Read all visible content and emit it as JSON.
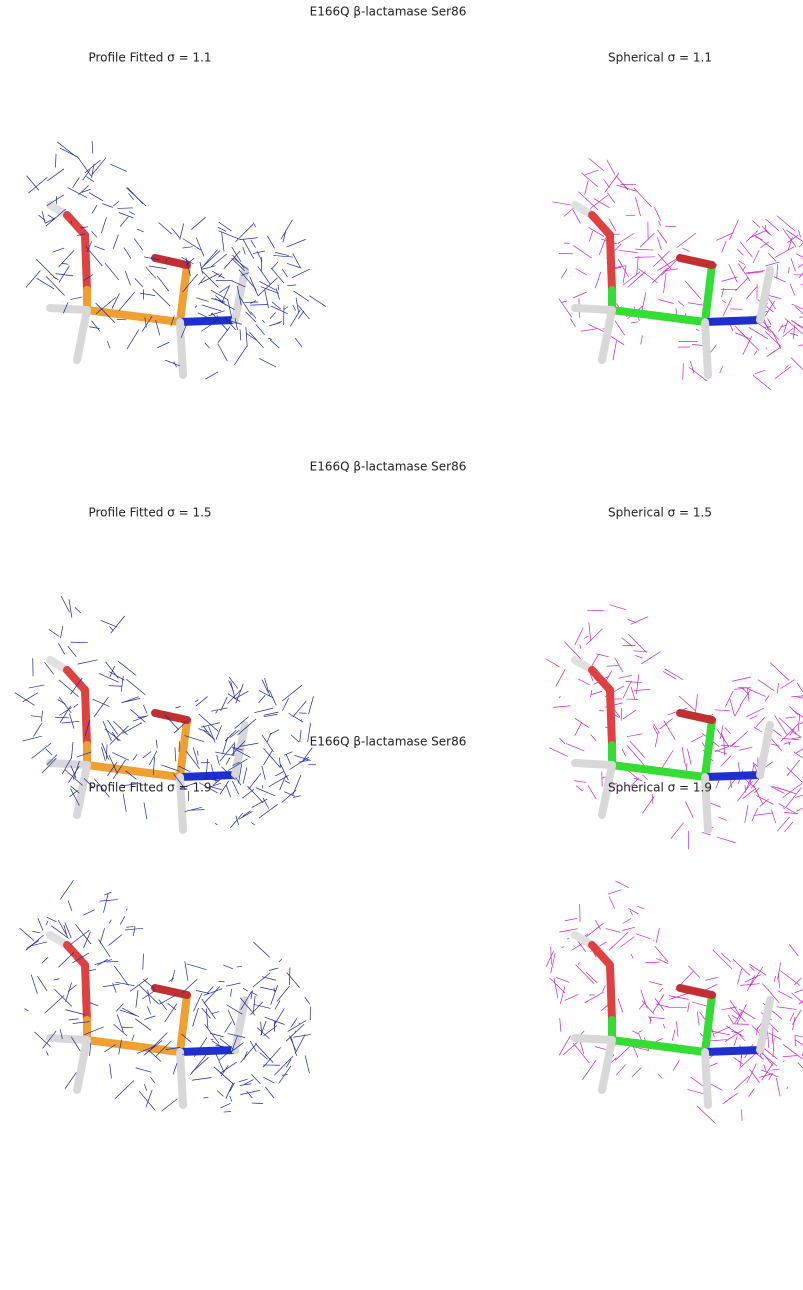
{
  "rows": [
    {
      "title": "E166Q β-lactamase Ser86",
      "panels": [
        {
          "title": "Profile Fitted σ = 1.1"
        },
        {
          "title": "Spherical σ = 1.1"
        }
      ]
    },
    {
      "title": "E166Q β-lactamase Ser86",
      "panels": [
        {
          "title": "Profile Fitted σ = 1.5"
        },
        {
          "title": "Spherical σ = 1.5"
        }
      ]
    },
    {
      "title": "E166Q β-lactamase Ser86",
      "panels": [
        {
          "title": "Profile Fitted σ = 1.9"
        },
        {
          "title": "Spherical σ = 1.9"
        }
      ]
    }
  ]
}
